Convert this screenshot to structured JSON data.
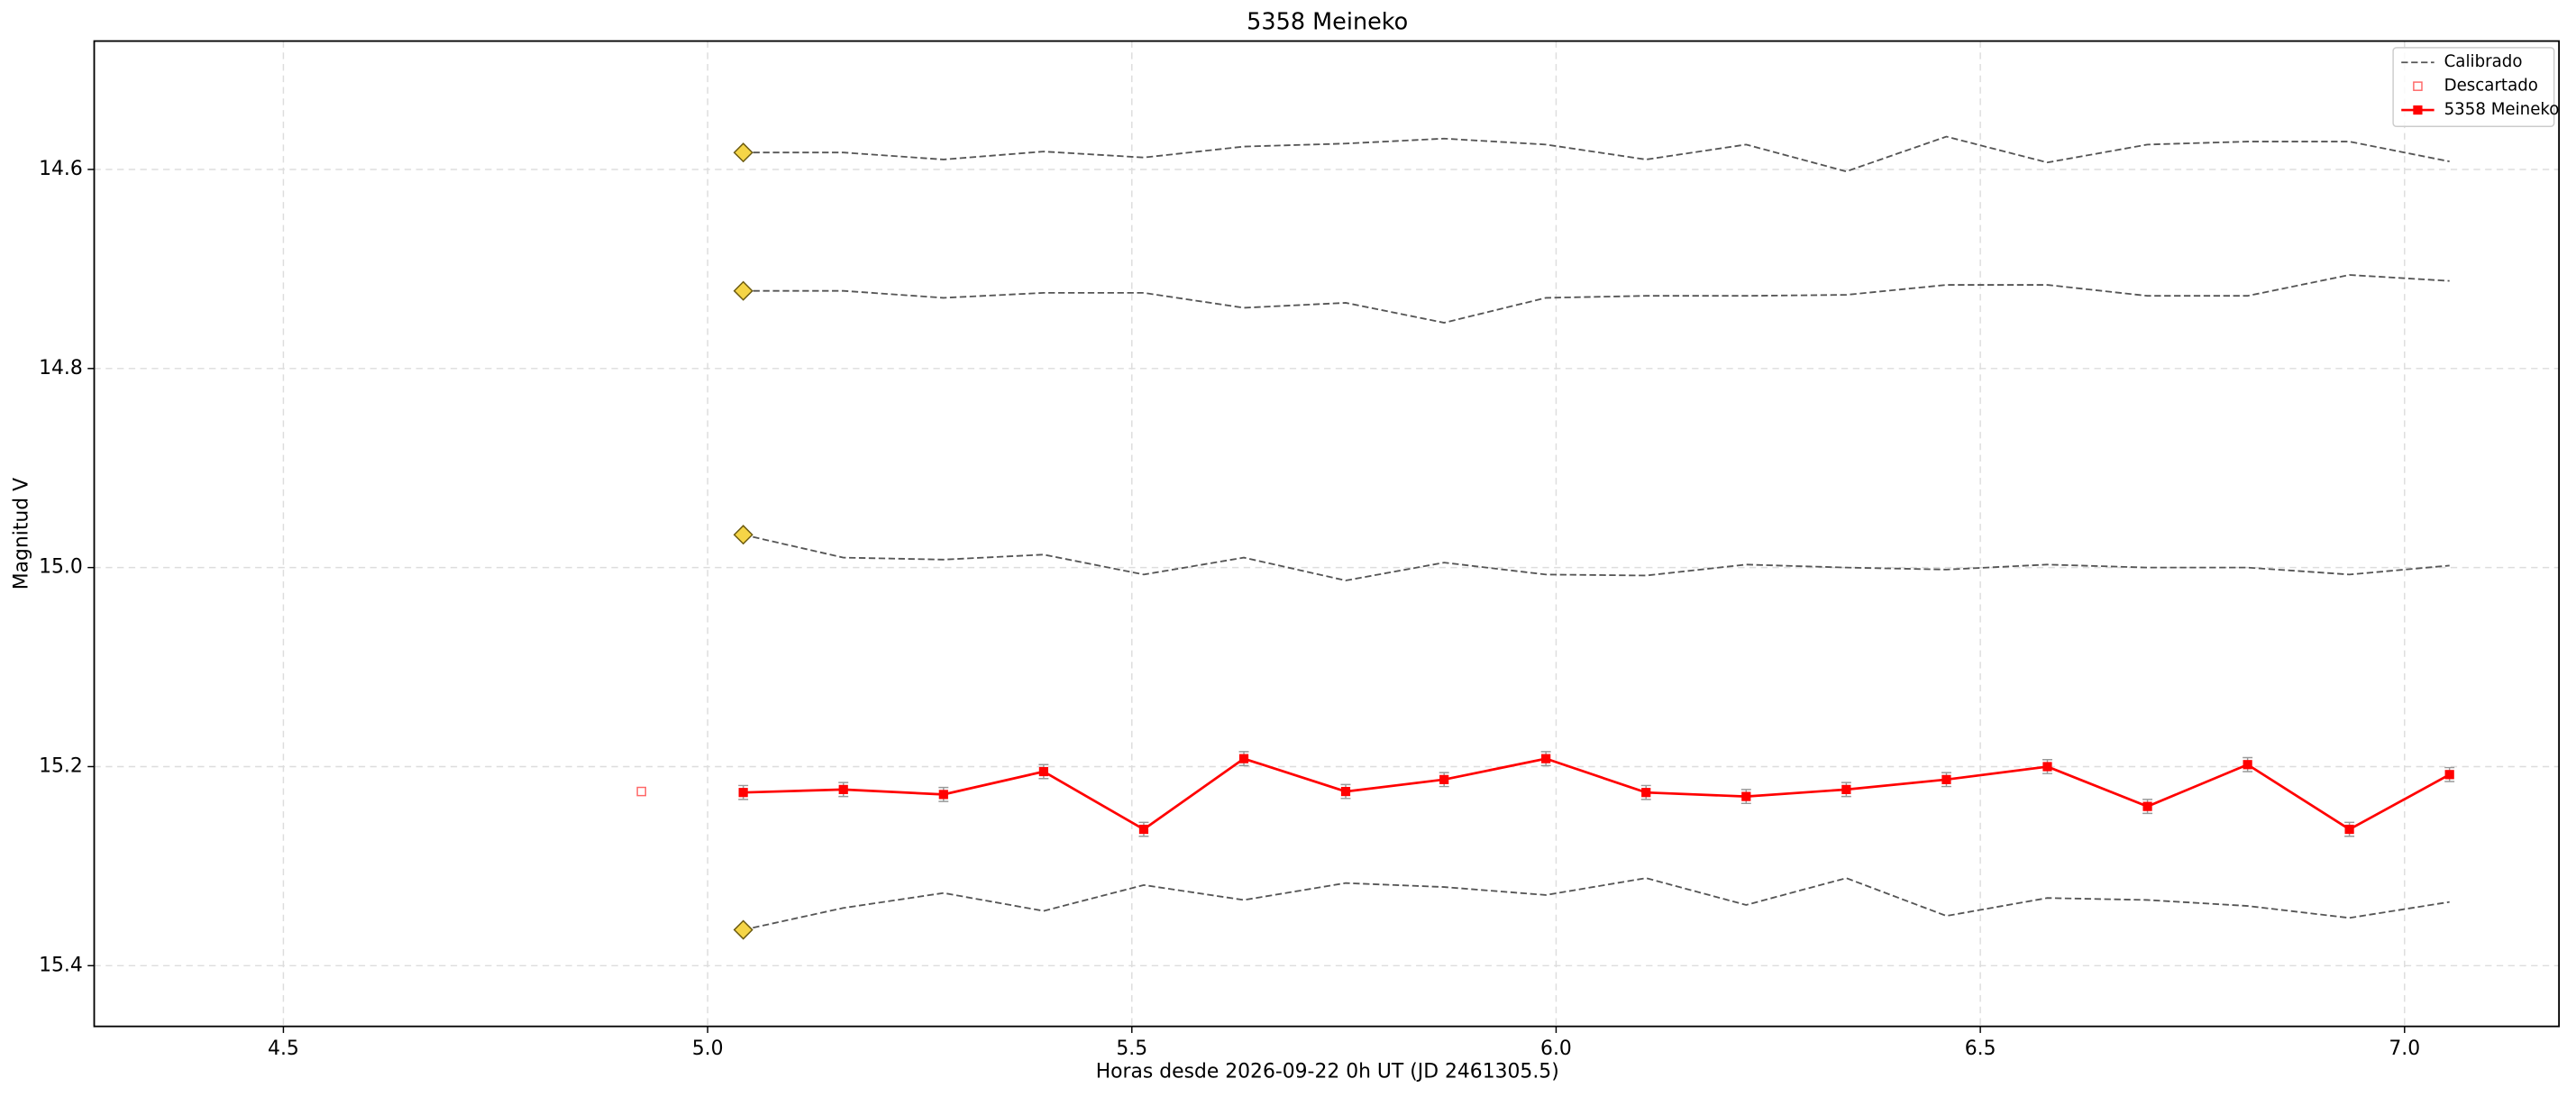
{
  "chart_data": {
    "type": "line",
    "title": "5358 Meineko",
    "xlabel": "Horas desde 2026-09-22 0h UT (JD 2461305.5)",
    "ylabel": "Magnitud V",
    "x": [
      5.042,
      5.16,
      5.278,
      5.396,
      5.514,
      5.632,
      5.752,
      5.868,
      5.988,
      6.106,
      6.224,
      6.342,
      6.46,
      6.579,
      6.697,
      6.815,
      6.935,
      7.053
    ],
    "calibrated": {
      "name": "Calibrado",
      "color": "#555555",
      "marker_color": "#f5d547",
      "values": [
        [
          14.583,
          14.583,
          14.59,
          14.582,
          14.588,
          14.577,
          14.574,
          14.569,
          14.575,
          14.59,
          14.575,
          14.602,
          14.567,
          14.593,
          14.575,
          14.572,
          14.572,
          14.592
        ],
        [
          14.722,
          14.722,
          14.729,
          14.724,
          14.724,
          14.739,
          14.734,
          14.754,
          14.729,
          14.727,
          14.727,
          14.726,
          14.716,
          14.716,
          14.727,
          14.727,
          14.706,
          14.712
        ],
        [
          14.967,
          14.99,
          14.992,
          14.987,
          15.007,
          14.99,
          15.013,
          14.995,
          15.007,
          15.008,
          14.997,
          15.0,
          15.002,
          14.997,
          15.0,
          15.0,
          15.007,
          14.998
        ],
        [
          15.364,
          15.342,
          15.327,
          15.345,
          15.319,
          15.334,
          15.317,
          15.321,
          15.329,
          15.312,
          15.339,
          15.312,
          15.35,
          15.332,
          15.334,
          15.34,
          15.352,
          15.336
        ]
      ]
    },
    "discarded": {
      "name": "Descartado",
      "color": "#ff6666",
      "x": [
        4.922
      ],
      "values": [
        15.225
      ]
    },
    "target": {
      "name": "5358 Meineko",
      "color": "#ff0000",
      "values": [
        15.226,
        15.223,
        15.228,
        15.205,
        15.263,
        15.192,
        15.225,
        15.213,
        15.192,
        15.226,
        15.23,
        15.223,
        15.213,
        15.2,
        15.24,
        15.198,
        15.263,
        15.208
      ],
      "errors": [
        0.007,
        0.007,
        0.007,
        0.007,
        0.007,
        0.007,
        0.007,
        0.007,
        0.007,
        0.007,
        0.007,
        0.007,
        0.007,
        0.007,
        0.007,
        0.007,
        0.007,
        0.007
      ]
    },
    "xlim": [
      4.277,
      7.182
    ],
    "ylim": [
      15.461,
      14.471
    ],
    "xticks": [
      4.5,
      {
        "value": 5,
        "label": "5.0"
      },
      5.5,
      {
        "value": 6,
        "label": "6.0"
      },
      6.5,
      {
        "value": 7,
        "label": "7.0"
      }
    ],
    "yticks": [
      14.6,
      14.8,
      {
        "value": 15,
        "label": "15.0"
      },
      15.2,
      15.4
    ],
    "grid": true,
    "legend": "upper-right"
  }
}
